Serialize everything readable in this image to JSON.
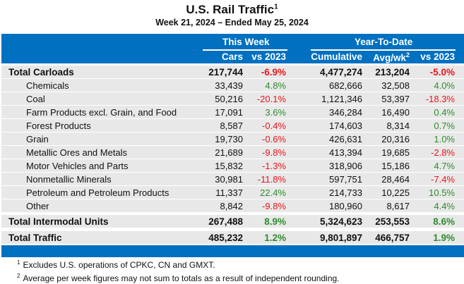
{
  "title": "U.S. Rail Traffic",
  "title_sup": "1",
  "subtitle": "Week 21, 2024 – Ended May 25, 2024",
  "header": {
    "this_week": "This Week",
    "ytd": "Year-To-Date",
    "cars": "Cars",
    "vs1": "vs 2023",
    "cumulative": "Cumulative",
    "avg": "Avg/wk",
    "avg_sup": "2",
    "vs2": "vs 2023"
  },
  "rows": [
    {
      "label": "Total Carloads",
      "cars": "217,744",
      "vs": "-6.9%",
      "cum": "4,477,274",
      "avg": "213,204",
      "vs_ytd": "-5.0%",
      "bold": true
    },
    {
      "label": "Chemicals",
      "cars": "33,439",
      "vs": "4.8%",
      "cum": "682,666",
      "avg": "32,508",
      "vs_ytd": "4.0%"
    },
    {
      "label": "Coal",
      "cars": "50,216",
      "vs": "-20.1%",
      "cum": "1,121,346",
      "avg": "53,397",
      "vs_ytd": "-18.3%"
    },
    {
      "label": "Farm Products excl. Grain, and Food",
      "cars": "17,091",
      "vs": "3.6%",
      "cum": "346,284",
      "avg": "16,490",
      "vs_ytd": "0.4%"
    },
    {
      "label": "Forest Products",
      "cars": "8,587",
      "vs": "-0.4%",
      "cum": "174,603",
      "avg": "8,314",
      "vs_ytd": "0.7%"
    },
    {
      "label": "Grain",
      "cars": "19,730",
      "vs": "-0.6%",
      "cum": "426,631",
      "avg": "20,316",
      "vs_ytd": "1.0%"
    },
    {
      "label": "Metallic Ores and Metals",
      "cars": "21,689",
      "vs": "-9.8%",
      "cum": "413,394",
      "avg": "19,685",
      "vs_ytd": "-2.8%"
    },
    {
      "label": "Motor Vehicles and Parts",
      "cars": "15,832",
      "vs": "-1.3%",
      "cum": "318,906",
      "avg": "15,186",
      "vs_ytd": "4.7%"
    },
    {
      "label": "Nonmetallic Minerals",
      "cars": "30,981",
      "vs": "-11.8%",
      "cum": "597,751",
      "avg": "28,464",
      "vs_ytd": "-7.4%"
    },
    {
      "label": "Petroleum and Petroleum Products",
      "cars": "11,337",
      "vs": "22.4%",
      "cum": "214,733",
      "avg": "10,225",
      "vs_ytd": "10.5%"
    },
    {
      "label": "Other",
      "cars": "8,842",
      "vs": "-9.8%",
      "cum": "180,960",
      "avg": "8,617",
      "vs_ytd": "4.4%"
    },
    {
      "label": "Total Intermodal Units",
      "cars": "267,488",
      "vs": "8.9%",
      "cum": "5,324,623",
      "avg": "253,553",
      "vs_ytd": "8.6%",
      "bold": true
    },
    {
      "label": "Total Traffic",
      "cars": "485,232",
      "vs": "1.2%",
      "cum": "9,801,897",
      "avg": "466,757",
      "vs_ytd": "1.9%",
      "bold": true
    }
  ],
  "footnotes": [
    {
      "num": "1",
      "text": "Excludes U.S. operations of CPKC, CN and GMXT."
    },
    {
      "num": "2",
      "text": "Average per week figures may not sum to totals as a result of independent rounding."
    }
  ],
  "colors": {
    "blue": "#0070c0",
    "negative": "#e8161b",
    "positive": "#2e8b2e"
  }
}
